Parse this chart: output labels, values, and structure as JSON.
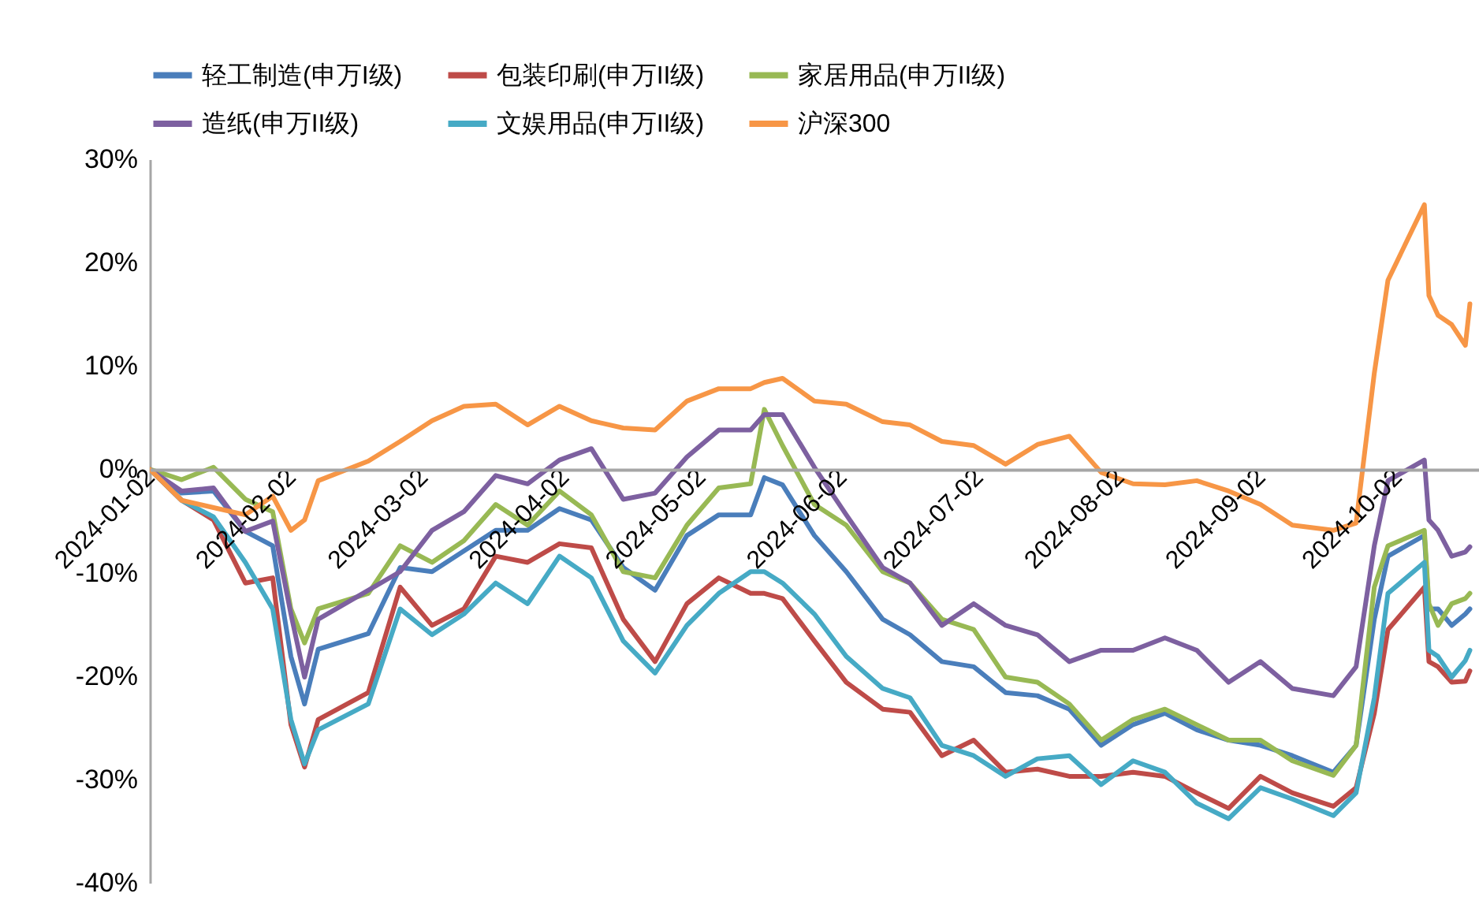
{
  "chart_data": {
    "type": "line",
    "legend": "top",
    "x": [
      "2024-01-02",
      "2024-01-09",
      "2024-01-16",
      "2024-01-23",
      "2024-01-29",
      "2024-02-02",
      "2024-02-05",
      "2024-02-08",
      "2024-02-19",
      "2024-02-26",
      "2024-03-04",
      "2024-03-11",
      "2024-03-18",
      "2024-03-25",
      "2024-04-01",
      "2024-04-08",
      "2024-04-15",
      "2024-04-22",
      "2024-04-29",
      "2024-05-06",
      "2024-05-13",
      "2024-05-16",
      "2024-05-20",
      "2024-05-27",
      "2024-06-03",
      "2024-06-11",
      "2024-06-17",
      "2024-06-24",
      "2024-07-01",
      "2024-07-08",
      "2024-07-15",
      "2024-07-22",
      "2024-07-29",
      "2024-08-05",
      "2024-08-12",
      "2024-08-19",
      "2024-08-26",
      "2024-09-02",
      "2024-09-09",
      "2024-09-18",
      "2024-09-23",
      "2024-09-27",
      "2024-09-30",
      "2024-10-08",
      "2024-10-09",
      "2024-10-11",
      "2024-10-14",
      "2024-10-17",
      "2024-10-18"
    ],
    "xlim": [
      "2024-01-02",
      "2024-10-20"
    ],
    "xticks": [
      {
        "value": "2024-01-02",
        "label": "2024-01-02"
      },
      {
        "value": "2024-02-02",
        "label": "2024-02-02"
      },
      {
        "value": "2024-03-02",
        "label": "2024-03-02"
      },
      {
        "value": "2024-04-02",
        "label": "2024-04-02"
      },
      {
        "value": "2024-05-02",
        "label": "2024-05-02"
      },
      {
        "value": "2024-06-02",
        "label": "2024-06-02"
      },
      {
        "value": "2024-07-02",
        "label": "2024-07-02"
      },
      {
        "value": "2024-08-02",
        "label": "2024-08-02"
      },
      {
        "value": "2024-09-02",
        "label": "2024-09-02"
      },
      {
        "value": "2024-10-02",
        "label": "2024-10-02"
      }
    ],
    "ylim": [
      -40,
      30
    ],
    "yticks": [
      {
        "value": -40,
        "label": "-40%"
      },
      {
        "value": -30,
        "label": "-30%"
      },
      {
        "value": -20,
        "label": "-20%"
      },
      {
        "value": -10,
        "label": "-10%"
      },
      {
        "value": 0,
        "label": "0%"
      },
      {
        "value": 10,
        "label": "10%"
      },
      {
        "value": 20,
        "label": "20%"
      },
      {
        "value": 30,
        "label": "30%"
      }
    ],
    "series": [
      {
        "name": "轻工制造(申万I级)",
        "color": "#4a7ebb",
        "values": [
          0,
          -2.3,
          -2.1,
          -6.0,
          -7.4,
          -18.1,
          -22.7,
          -17.4,
          -15.9,
          -9.5,
          -9.9,
          -7.9,
          -5.9,
          -5.9,
          -3.8,
          -4.9,
          -9.5,
          -11.7,
          -6.4,
          -4.4,
          -4.4,
          -0.8,
          -1.5,
          -6.4,
          -9.9,
          -14.5,
          -16.0,
          -18.6,
          -19.1,
          -21.6,
          -21.9,
          -23.2,
          -26.7,
          -24.7,
          -23.6,
          -25.2,
          -26.2,
          -26.7,
          -27.7,
          -29.3,
          -26.7,
          -14.5,
          -8.4,
          -6.4,
          -13.5,
          -13.5,
          -15.1,
          -14.0,
          -13.5
        ]
      },
      {
        "name": "包装印刷(申万II级)",
        "color": "#be4b48",
        "values": [
          0,
          -3.0,
          -4.9,
          -11.0,
          -10.5,
          -24.7,
          -28.8,
          -24.2,
          -21.6,
          -11.4,
          -15.1,
          -13.5,
          -8.4,
          -9.0,
          -7.2,
          -7.6,
          -14.5,
          -18.6,
          -13.0,
          -10.5,
          -12.0,
          -12.0,
          -12.5,
          -16.6,
          -20.6,
          -23.2,
          -23.5,
          -27.7,
          -26.2,
          -29.3,
          -29.0,
          -29.7,
          -29.7,
          -29.3,
          -29.7,
          -31.3,
          -32.8,
          -29.7,
          -31.3,
          -32.6,
          -30.8,
          -23.6,
          -15.5,
          -11.4,
          -18.6,
          -19.1,
          -20.6,
          -20.5,
          -19.5
        ]
      },
      {
        "name": "家居用品(申万II级)",
        "color": "#98b954",
        "values": [
          0,
          -1.0,
          0.2,
          -2.9,
          -4.1,
          -13.5,
          -16.8,
          -13.5,
          -12.0,
          -7.4,
          -9.0,
          -6.9,
          -3.4,
          -5.4,
          -2.1,
          -4.4,
          -9.9,
          -10.5,
          -5.4,
          -1.8,
          -1.4,
          5.8,
          2.3,
          -3.4,
          -5.4,
          -9.9,
          -11.0,
          -14.5,
          -15.5,
          -20.1,
          -20.6,
          -22.7,
          -26.2,
          -24.2,
          -23.2,
          -24.7,
          -26.2,
          -26.2,
          -28.2,
          -29.6,
          -26.7,
          -11.4,
          -7.4,
          -5.9,
          -13.0,
          -15.1,
          -13.0,
          -12.5,
          -12.0
        ]
      },
      {
        "name": "造纸(申万II级)",
        "color": "#7d60a0",
        "values": [
          0,
          -2.1,
          -1.8,
          -6.0,
          -5.0,
          -14.0,
          -20.1,
          -14.5,
          -11.7,
          -9.9,
          -5.9,
          -4.1,
          -0.6,
          -1.4,
          0.9,
          2.0,
          -2.9,
          -2.3,
          1.2,
          3.8,
          3.8,
          5.3,
          5.3,
          0.2,
          -4.4,
          -9.5,
          -11.0,
          -15.1,
          -13.0,
          -15.1,
          -16.0,
          -18.6,
          -17.5,
          -17.5,
          -16.3,
          -17.5,
          -20.6,
          -18.6,
          -21.2,
          -21.9,
          -19.1,
          -7.4,
          -1.1,
          0.9,
          -4.9,
          -5.9,
          -8.4,
          -8.0,
          -7.5
        ]
      },
      {
        "name": "文娱用品(申万II级)",
        "color": "#46aac5",
        "values": [
          0,
          -3.0,
          -4.6,
          -9.0,
          -13.5,
          -24.2,
          -28.5,
          -25.2,
          -22.7,
          -13.5,
          -16.0,
          -14.0,
          -11.0,
          -13.0,
          -8.4,
          -10.5,
          -16.6,
          -19.7,
          -15.1,
          -12.0,
          -9.9,
          -9.9,
          -11.0,
          -14.0,
          -18.1,
          -21.2,
          -22.1,
          -26.7,
          -27.7,
          -29.7,
          -28.0,
          -27.7,
          -30.5,
          -28.2,
          -29.3,
          -32.3,
          -33.8,
          -30.8,
          -31.9,
          -33.5,
          -31.3,
          -22.1,
          -12.0,
          -9.0,
          -17.5,
          -18.1,
          -20.1,
          -18.5,
          -17.5
        ]
      },
      {
        "name": "沪深300",
        "color": "#f79646",
        "values": [
          0,
          -3.0,
          -3.7,
          -4.4,
          -2.6,
          -5.9,
          -4.9,
          -1.1,
          0.8,
          2.7,
          4.7,
          6.1,
          6.3,
          4.3,
          6.1,
          4.7,
          4.0,
          3.8,
          6.6,
          7.8,
          7.8,
          8.4,
          8.8,
          6.6,
          6.3,
          4.6,
          4.3,
          2.7,
          2.3,
          0.5,
          2.4,
          3.2,
          -0.3,
          -1.4,
          -1.5,
          -1.1,
          -2.1,
          -3.4,
          -5.4,
          -5.9,
          -5.2,
          9.3,
          18.3,
          25.6,
          16.8,
          14.9,
          14.0,
          12.0,
          16.0
        ]
      }
    ]
  }
}
